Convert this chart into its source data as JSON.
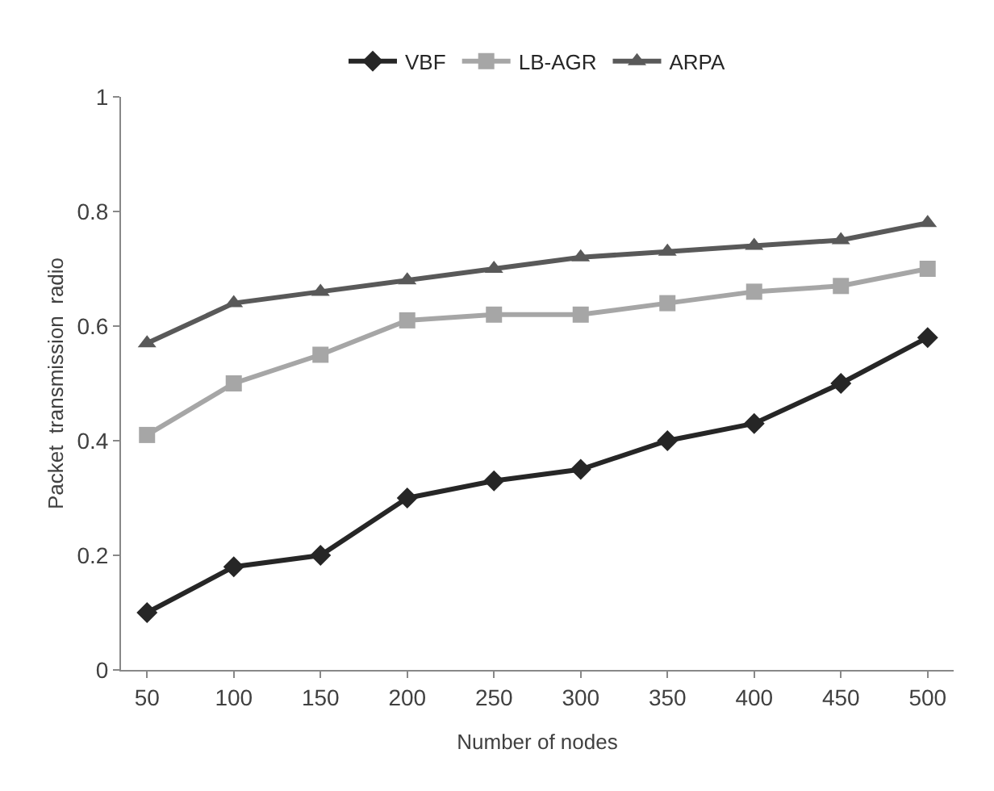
{
  "chart_data": {
    "type": "line",
    "xlabel": "Number of nodes",
    "ylabel": "Packet  transmission  radio",
    "categories": [
      "50",
      "100",
      "150",
      "200",
      "250",
      "300",
      "350",
      "400",
      "450",
      "500"
    ],
    "series": [
      {
        "name": "VBF",
        "color": "#262626",
        "marker": "diamond",
        "values": [
          0.1,
          0.18,
          0.2,
          0.3,
          0.33,
          0.35,
          0.4,
          0.43,
          0.5,
          0.58
        ]
      },
      {
        "name": "LB-AGR",
        "color": "#a6a6a6",
        "marker": "square",
        "values": [
          0.41,
          0.5,
          0.55,
          0.61,
          0.62,
          0.62,
          0.64,
          0.66,
          0.67,
          0.7
        ]
      },
      {
        "name": "ARPA",
        "color": "#595959",
        "marker": "triangle",
        "values": [
          0.57,
          0.64,
          0.66,
          0.68,
          0.7,
          0.72,
          0.73,
          0.74,
          0.75,
          0.78
        ]
      }
    ],
    "ylim": [
      0,
      1
    ],
    "yticks": [
      0,
      0.2,
      0.4,
      0.6,
      0.8,
      1
    ],
    "grid": false,
    "legend": "top",
    "line_style": "solid"
  }
}
